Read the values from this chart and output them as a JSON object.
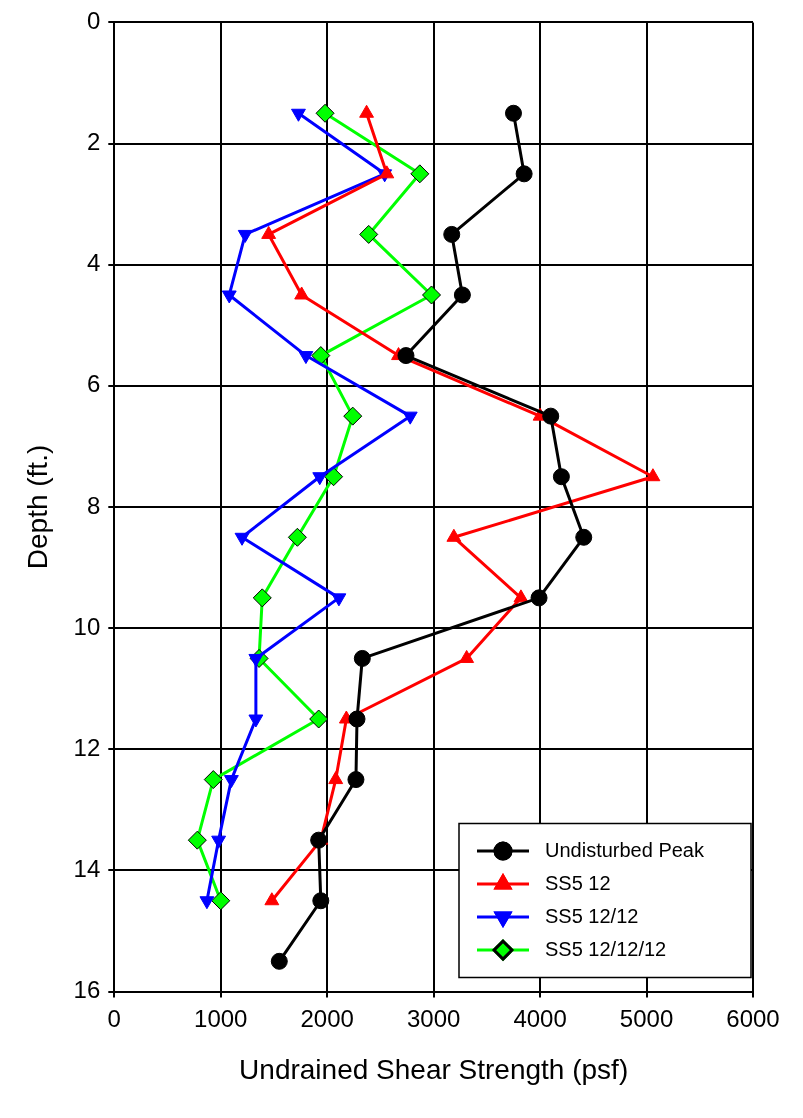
{
  "chart_data": {
    "type": "line",
    "orientation": "horizontal",
    "xlabel": "Undrained Shear Strength (psf)",
    "ylabel": "Depth (ft.)",
    "xlim": [
      0,
      6000
    ],
    "xticks": [
      0,
      1000,
      2000,
      3000,
      4000,
      5000,
      6000
    ],
    "ylim": [
      16,
      0
    ],
    "yticks": [
      0,
      2,
      4,
      6,
      8,
      10,
      12,
      14,
      16
    ],
    "grid": true,
    "legend": "bottom right",
    "line_style": "solid",
    "series": [
      {
        "name": "Undisturbed Peak",
        "color": "#000000",
        "marker": "circle",
        "x": [
          1.5,
          2.5,
          3.5,
          4.5,
          5.5,
          6.5,
          7.5,
          8.5,
          9.5,
          10.5,
          11.5,
          12.5,
          13.5,
          14.5,
          15.5
        ],
        "values": [
          3750,
          3850,
          3170,
          3270,
          2740,
          4100,
          4200,
          4410,
          3990,
          2330,
          2280,
          2270,
          1920,
          1940,
          1550
        ]
      },
      {
        "name": "SS5 12",
        "color": "#ff0000",
        "marker": "triangle",
        "x": [
          1.5,
          2.5,
          3.5,
          4.5,
          5.5,
          6.5,
          7.5,
          8.5,
          9.5,
          10.5,
          11.5,
          12.5,
          13.5,
          14.5
        ],
        "values": [
          2370,
          2560,
          1450,
          1760,
          2670,
          4000,
          5060,
          3190,
          3820,
          3310,
          2180,
          2080,
          1940,
          1480
        ]
      },
      {
        "name": "SS5 12/12",
        "color": "#0000ff",
        "marker": "triangle-down",
        "x": [
          1.5,
          2.5,
          3.5,
          4.5,
          5.5,
          6.5,
          7.5,
          8.5,
          9.5,
          10.5,
          11.5,
          12.5,
          13.5,
          14.5
        ],
        "values": [
          1730,
          2540,
          1230,
          1080,
          1800,
          2780,
          1930,
          1200,
          2110,
          1330,
          1330,
          1100,
          980,
          870
        ]
      },
      {
        "name": "SS5 12/12/12",
        "color": "#00ff00",
        "marker": "diamond",
        "x": [
          1.5,
          2.5,
          3.5,
          4.5,
          5.5,
          6.5,
          7.5,
          8.5,
          9.5,
          10.5,
          11.5,
          12.5,
          13.5,
          14.5
        ],
        "values": [
          1980,
          2870,
          2390,
          2980,
          1940,
          2240,
          2060,
          1720,
          1390,
          1360,
          1920,
          930,
          780,
          1000
        ]
      }
    ]
  }
}
